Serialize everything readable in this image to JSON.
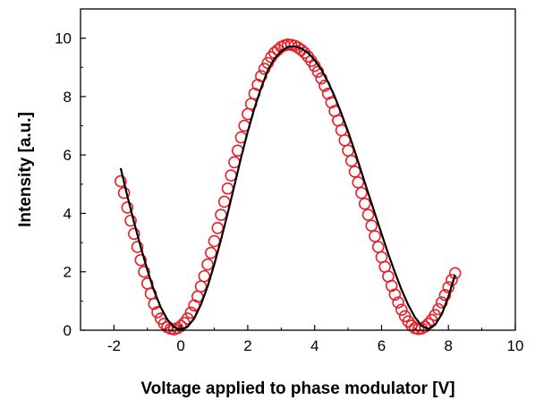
{
  "chart_data": {
    "type": "scatter",
    "xlabel": "Voltage applied to phase modulator [V]",
    "ylabel": "Intensity [a.u.]",
    "xlim": [
      -3,
      10
    ],
    "ylim": [
      0,
      11
    ],
    "x_ticks": [
      -2,
      0,
      2,
      4,
      6,
      8,
      10
    ],
    "y_ticks": [
      0,
      2,
      4,
      6,
      8,
      10
    ],
    "grid": false,
    "series": [
      {
        "kind": "scatter",
        "marker": "open-circle",
        "color": "#e8202a",
        "x": [
          -1.8,
          -1.7,
          -1.6,
          -1.5,
          -1.4,
          -1.3,
          -1.2,
          -1.1,
          -1.0,
          -0.9,
          -0.8,
          -0.7,
          -0.6,
          -0.5,
          -0.4,
          -0.3,
          -0.2,
          -0.1,
          0.0,
          0.1,
          0.2,
          0.3,
          0.4,
          0.5,
          0.6,
          0.7,
          0.8,
          0.9,
          1.0,
          1.1,
          1.2,
          1.3,
          1.4,
          1.5,
          1.6,
          1.7,
          1.8,
          1.9,
          2.0,
          2.1,
          2.2,
          2.3,
          2.4,
          2.5,
          2.6,
          2.7,
          2.8,
          2.9,
          3.0,
          3.1,
          3.2,
          3.3,
          3.4,
          3.5,
          3.6,
          3.7,
          3.8,
          3.9,
          4.0,
          4.1,
          4.2,
          4.3,
          4.4,
          4.5,
          4.6,
          4.7,
          4.8,
          4.9,
          5.0,
          5.1,
          5.2,
          5.3,
          5.4,
          5.5,
          5.6,
          5.7,
          5.8,
          5.9,
          6.0,
          6.1,
          6.2,
          6.3,
          6.4,
          6.5,
          6.6,
          6.7,
          6.8,
          6.9,
          7.0,
          7.1,
          7.2,
          7.3,
          7.4,
          7.5,
          7.6,
          7.7,
          7.8,
          7.9,
          8.0,
          8.1,
          8.2
        ],
        "y": [
          5.1,
          4.7,
          4.2,
          3.75,
          3.3,
          2.85,
          2.4,
          2.0,
          1.6,
          1.25,
          0.9,
          0.62,
          0.4,
          0.22,
          0.1,
          0.05,
          0.03,
          0.07,
          0.14,
          0.25,
          0.4,
          0.6,
          0.85,
          1.15,
          1.5,
          1.85,
          2.25,
          2.65,
          3.05,
          3.5,
          3.95,
          4.4,
          4.85,
          5.3,
          5.75,
          6.15,
          6.6,
          7.0,
          7.4,
          7.75,
          8.1,
          8.4,
          8.7,
          8.95,
          9.15,
          9.35,
          9.5,
          9.6,
          9.7,
          9.75,
          9.78,
          9.77,
          9.74,
          9.68,
          9.6,
          9.5,
          9.37,
          9.22,
          9.05,
          8.85,
          8.62,
          8.37,
          8.1,
          7.8,
          7.5,
          7.18,
          6.85,
          6.5,
          6.15,
          5.8,
          5.43,
          5.06,
          4.7,
          4.33,
          3.95,
          3.58,
          3.22,
          2.85,
          2.5,
          2.17,
          1.84,
          1.52,
          1.22,
          0.95,
          0.7,
          0.48,
          0.3,
          0.16,
          0.07,
          0.04,
          0.06,
          0.12,
          0.22,
          0.35,
          0.52,
          0.72,
          0.95,
          1.2,
          1.47,
          1.72,
          1.95
        ]
      },
      {
        "kind": "line",
        "color": "#000000",
        "x": [
          -1.8,
          -1.6,
          -1.4,
          -1.2,
          -1.0,
          -0.8,
          -0.6,
          -0.4,
          -0.2,
          0.0,
          0.2,
          0.4,
          0.6,
          0.8,
          1.0,
          1.2,
          1.4,
          1.6,
          1.8,
          2.0,
          2.2,
          2.4,
          2.6,
          2.8,
          3.0,
          3.2,
          3.4,
          3.6,
          3.8,
          4.0,
          4.2,
          4.4,
          4.6,
          4.8,
          5.0,
          5.2,
          5.4,
          5.6,
          5.8,
          6.0,
          6.2,
          6.4,
          6.6,
          6.8,
          7.0,
          7.2,
          7.4,
          7.6,
          7.8,
          8.0,
          8.2
        ],
        "y": [
          5.55,
          4.6,
          3.7,
          2.85,
          2.05,
          1.35,
          0.78,
          0.36,
          0.1,
          0.02,
          0.12,
          0.4,
          0.88,
          1.5,
          2.25,
          3.1,
          4.0,
          4.95,
          5.9,
          6.8,
          7.6,
          8.3,
          8.9,
          9.3,
          9.55,
          9.7,
          9.72,
          9.65,
          9.5,
          9.25,
          8.92,
          8.5,
          8.0,
          7.42,
          6.8,
          6.12,
          5.42,
          4.7,
          4.0,
          3.3,
          2.62,
          1.98,
          1.38,
          0.86,
          0.44,
          0.15,
          0.05,
          0.18,
          0.55,
          1.15,
          1.9
        ]
      }
    ]
  }
}
